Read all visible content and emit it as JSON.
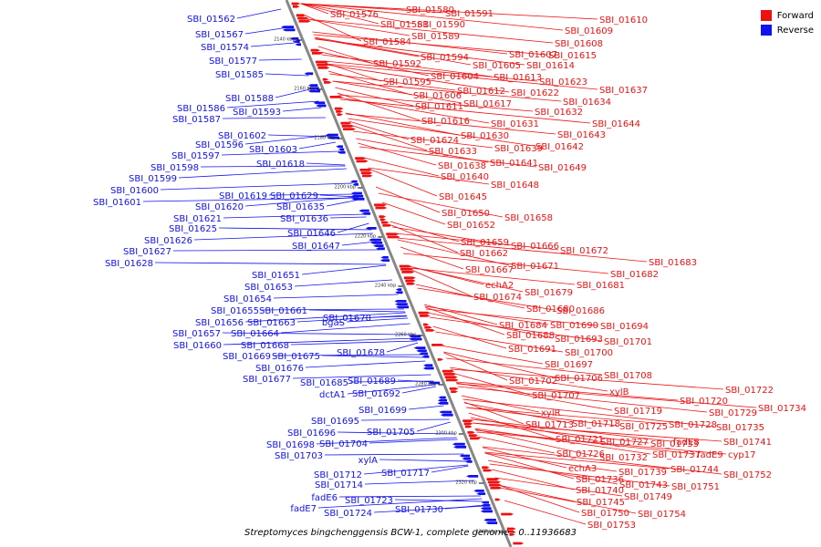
{
  "caption": "Streptomyces bingchenggensis BCW-1, complete genome - 0..11936683",
  "legend": [
    {
      "label": "Forward",
      "color": "#ee1111"
    },
    {
      "label": "Reverse",
      "color": "#1111ee"
    }
  ],
  "colors": {
    "forward": "#ee1111",
    "reverse": "#1111ee",
    "backbone": "#888888"
  },
  "ticks": [
    "2140 kbp",
    "2160 kbp",
    "2180 kbp",
    "2200 kbp",
    "2220 kbp",
    "2240 kbp",
    "2260 kbp",
    "2280 kbp",
    "2300 kbp",
    "2320 kbp",
    "2340 kbp"
  ],
  "forward_labels": [
    "SBI_01576",
    "SBI_01580",
    "SBI_01591",
    "SBI_01581",
    "SBI_01590",
    "SBI_01610",
    "SBI_01589",
    "SBI_01609",
    "SBI_01584",
    "SBI_01608",
    "SBI_01607",
    "SBI_01615",
    "SBI_01594",
    "SBI_01592",
    "SBI_01605",
    "SBI_01614",
    "SBI_01604",
    "SBI_01613",
    "SBI_01623",
    "SBI_01595",
    "SBI_01612",
    "SBI_01622",
    "SBI_01637",
    "SBI_01606",
    "SBI_01617",
    "SBI_01634",
    "SBI_01611",
    "SBI_01632",
    "SBI_01616",
    "SBI_01631",
    "SBI_01644",
    "SBI_01630",
    "SBI_01643",
    "SBI_01624",
    "SBI_01639",
    "SBI_01642",
    "SBI_01633",
    "SBI_01641",
    "SBI_01638",
    "SBI_01649",
    "SBI_01640",
    "SBI_01648",
    "SBI_01645",
    "SBI_01650",
    "SBI_01658",
    "SBI_01652",
    "SBI_01659",
    "SBI_01666",
    "SBI_01672",
    "SBI_01662",
    "SBI_01671",
    "SBI_01683",
    "SBI_01667",
    "SBI_01682",
    "echA2",
    "SBI_01681",
    "SBI_01674",
    "SBI_01679",
    "SBI_01680",
    "SBI_01686",
    "SBI_01684",
    "SBI_01690",
    "SBI_01694",
    "SBI_01688",
    "SBI_01693",
    "SBI_01701",
    "SBI_01691",
    "SBI_01700",
    "SBI_01697",
    "SBI_01708",
    "SBI_01702",
    "SBI_01706",
    "xylB",
    "SBI_01707",
    "SBI_01722",
    "SBI_01720",
    "xylR",
    "SBI_01719",
    "SBI_01729",
    "SBI_01734",
    "SBI_01713",
    "SBI_01718",
    "SBI_01725",
    "SBI_01728",
    "SBI_01735",
    "SBI_01721",
    "SBI_01727",
    "fadE8",
    "SBI_01733",
    "SBI_01741",
    "SBI_01726",
    "SBI_01732",
    "SBI_01737",
    "fadE9",
    "cyp17",
    "echA3",
    "SBI_01739",
    "SBI_01744",
    "SBI_01752",
    "SBI_01736",
    "SBI_01743",
    "SBI_01751",
    "SBI_01740",
    "SBI_01749",
    "SBI_01745",
    "SBI_01750",
    "SBI_01754",
    "SBI_01753"
  ],
  "reverse_labels": [
    "SBI_01562",
    "SBI_01567",
    "SBI_01574",
    "SBI_01577",
    "SBI_01585",
    "SBI_01588",
    "SBI_01586",
    "SBI_01593",
    "SBI_01587",
    "SBI_01602",
    "SBI_01596",
    "SBI_01603",
    "SBI_01597",
    "SBI_01598",
    "SBI_01618",
    "SBI_01599",
    "SBI_01600",
    "SBI_01601",
    "SBI_01619",
    "SBI_01629",
    "SBI_01620",
    "SBI_01635",
    "SBI_01621",
    "SBI_01636",
    "SBI_01625",
    "SBI_01646",
    "SBI_01626",
    "SBI_01647",
    "SBI_01627",
    "SBI_01628",
    "SBI_01651",
    "SBI_01653",
    "SBI_01654",
    "SBI_01655",
    "SBI_01661",
    "SBI_01656",
    "SBI_01663",
    "bgaS",
    "SBI_01670",
    "SBI_01657",
    "SBI_01664",
    "SBI_01660",
    "SBI_01668",
    "SBI_01669",
    "SBI_01675",
    "SBI_01678",
    "SBI_01676",
    "SBI_01677",
    "SBI_01685",
    "SBI_01689",
    "dctA1",
    "SBI_01692",
    "SBI_01699",
    "SBI_01695",
    "SBI_01696",
    "SBI_01705",
    "SBI_01698",
    "SBI_01704",
    "SBI_01703",
    "xylA",
    "SBI_01712",
    "SBI_01717",
    "SBI_01714",
    "fadE6",
    "SBI_01723",
    "fadE7",
    "SBI_01724",
    "SBI_01730"
  ]
}
